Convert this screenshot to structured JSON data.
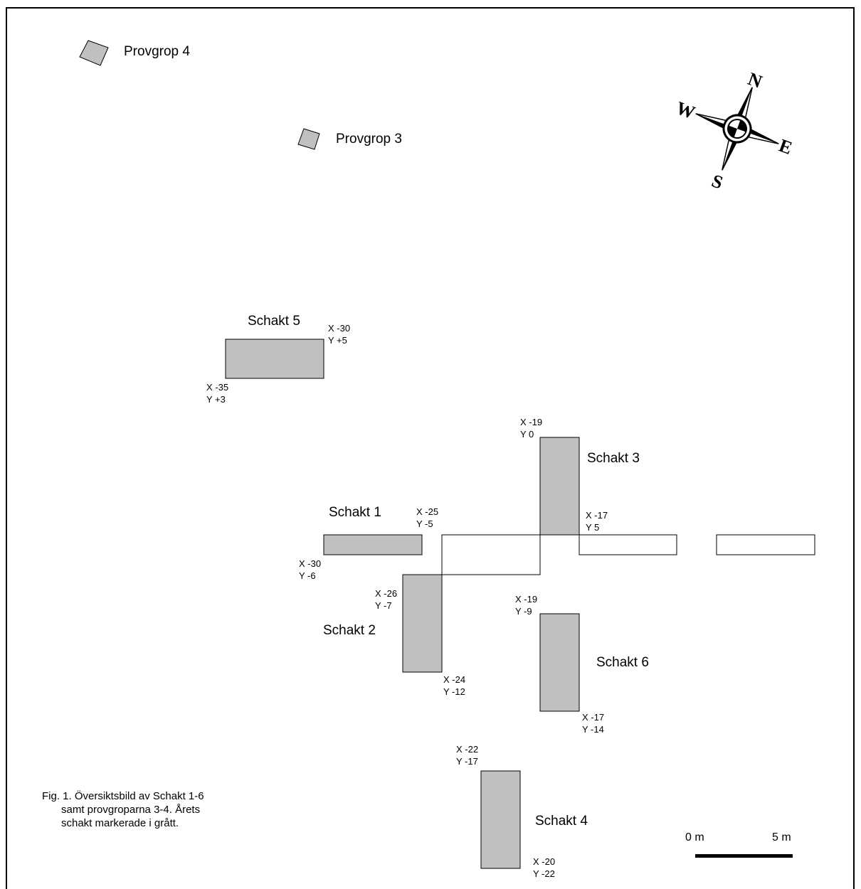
{
  "colors": {
    "excavated_fill": "#c0c0c0",
    "outline": "#000000",
    "background": "#ffffff"
  },
  "test_pits": [
    {
      "label": "Provgrop 4"
    },
    {
      "label": "Provgrop 3"
    }
  ],
  "trenches": [
    {
      "label": "Schakt 1",
      "coord_a_x": "X -25",
      "coord_a_y": "Y -5",
      "coord_b_x": "X -30",
      "coord_b_y": "Y -6"
    },
    {
      "label": "Schakt 2",
      "coord_a_x": "X -26",
      "coord_a_y": "Y -7",
      "coord_b_x": "X -24",
      "coord_b_y": "Y -12"
    },
    {
      "label": "Schakt 3",
      "coord_a_x": "X -19",
      "coord_a_y": "Y 0",
      "coord_b_x": "X -17",
      "coord_b_y": "Y 5"
    },
    {
      "label": "Schakt 4",
      "coord_a_x": "X -22",
      "coord_a_y": "Y -17",
      "coord_b_x": "X -20",
      "coord_b_y": "Y -22"
    },
    {
      "label": "Schakt 5",
      "coord_a_x": "X -30",
      "coord_a_y": "Y +5",
      "coord_b_x": "X -35",
      "coord_b_y": "Y +3"
    },
    {
      "label": "Schakt 6",
      "coord_a_x": "X -19",
      "coord_a_y": "Y -9",
      "coord_b_x": "X -17",
      "coord_b_y": "Y -14"
    }
  ],
  "compass": {
    "n": "N",
    "e": "E",
    "s": "S",
    "w": "W"
  },
  "caption": {
    "line1": "Fig. 1. Översiktsbild av Schakt 1-6",
    "line2": "samt provgroparna 3-4. Årets",
    "line3": "schakt markerade i grått."
  },
  "scale_bar": {
    "start_label": "0 m",
    "end_label": "5 m"
  }
}
